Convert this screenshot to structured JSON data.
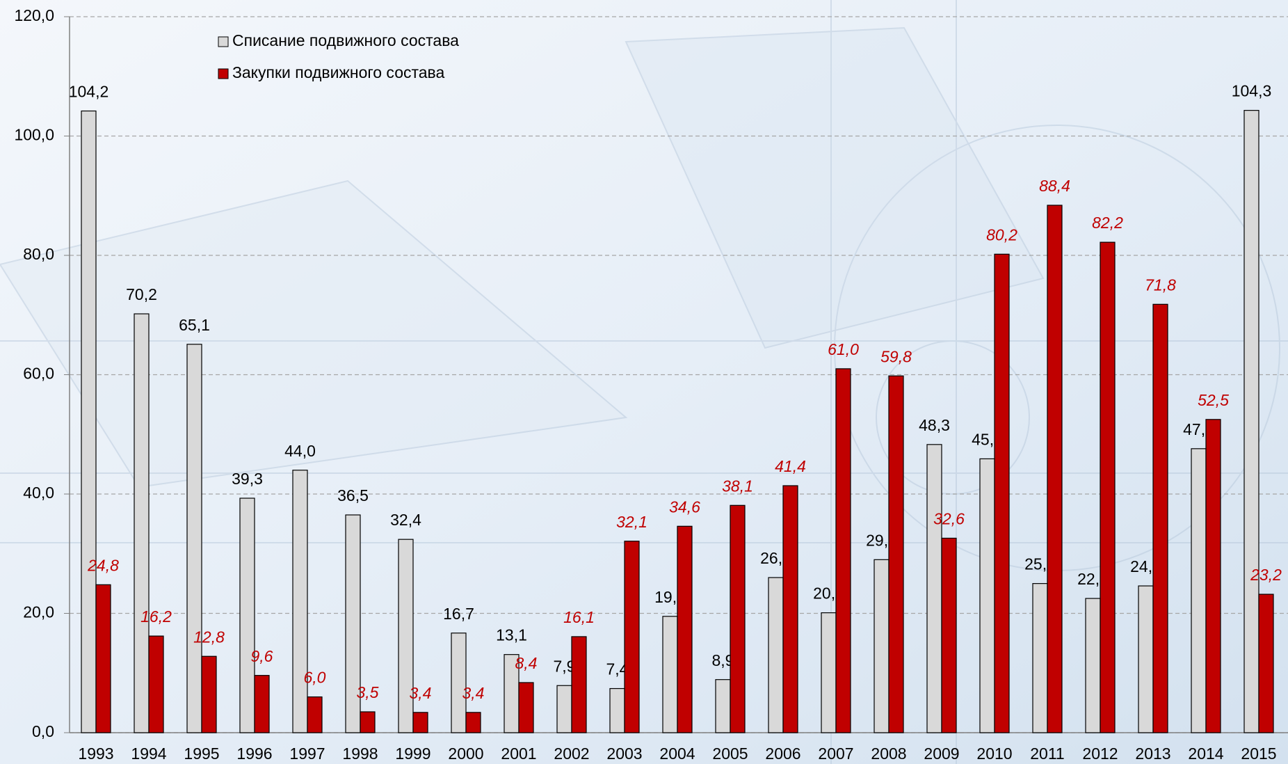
{
  "chart_data": {
    "type": "bar",
    "categories": [
      "1993",
      "1994",
      "1995",
      "1996",
      "1997",
      "1998",
      "1999",
      "2000",
      "2001",
      "2002",
      "2003",
      "2004",
      "2005",
      "2006",
      "2007",
      "2008",
      "2009",
      "2010",
      "2011",
      "2012",
      "2013",
      "2014",
      "2015"
    ],
    "series": [
      {
        "name": "Списание подвижного состава",
        "color": "#d9d9d9",
        "values": [
          104.2,
          70.2,
          65.1,
          39.3,
          44.0,
          36.5,
          32.4,
          16.7,
          13.1,
          7.9,
          7.4,
          19.5,
          8.9,
          26.0,
          20.1,
          29.0,
          48.3,
          45.9,
          25.0,
          22.5,
          24.6,
          47.6,
          104.3
        ],
        "value_labels": [
          "104,2",
          "70,2",
          "65,1",
          "39,3",
          "44,0",
          "36,5",
          "32,4",
          "16,7",
          "13,1",
          "7,9",
          "7,4",
          "19,5",
          "8,9",
          "26,0",
          "20,1",
          "29,0",
          "48,3",
          "45,9",
          "25,0",
          "22,5",
          "24,6",
          "47,6",
          "104,3"
        ]
      },
      {
        "name": "Закупки подвижного состава",
        "color": "#c00000",
        "values": [
          24.8,
          16.2,
          12.8,
          9.6,
          6.0,
          3.5,
          3.4,
          3.4,
          8.4,
          16.1,
          32.1,
          34.6,
          38.1,
          41.4,
          61.0,
          59.8,
          32.6,
          80.2,
          88.4,
          82.2,
          71.8,
          52.5,
          23.2
        ],
        "value_labels": [
          "24,8",
          "16,2",
          "12,8",
          "9,6",
          "6,0",
          "3,5",
          "3,4",
          "3,4",
          "8,4",
          "16,1",
          "32,1",
          "34,6",
          "38,1",
          "41,4",
          "61,0",
          "59,8",
          "32,6",
          "80,2",
          "88,4",
          "82,2",
          "71,8",
          "52,5",
          "23,2"
        ]
      }
    ],
    "ylim": [
      0,
      120
    ],
    "yticks": [
      {
        "value": 0,
        "label": "0,0"
      },
      {
        "value": 20,
        "label": "20,0"
      },
      {
        "value": 40,
        "label": "40,0"
      },
      {
        "value": 60,
        "label": "60,0"
      },
      {
        "value": 80,
        "label": "80,0"
      },
      {
        "value": 100,
        "label": "100,0"
      },
      {
        "value": 120,
        "label": "120,0"
      }
    ],
    "grid": true
  }
}
